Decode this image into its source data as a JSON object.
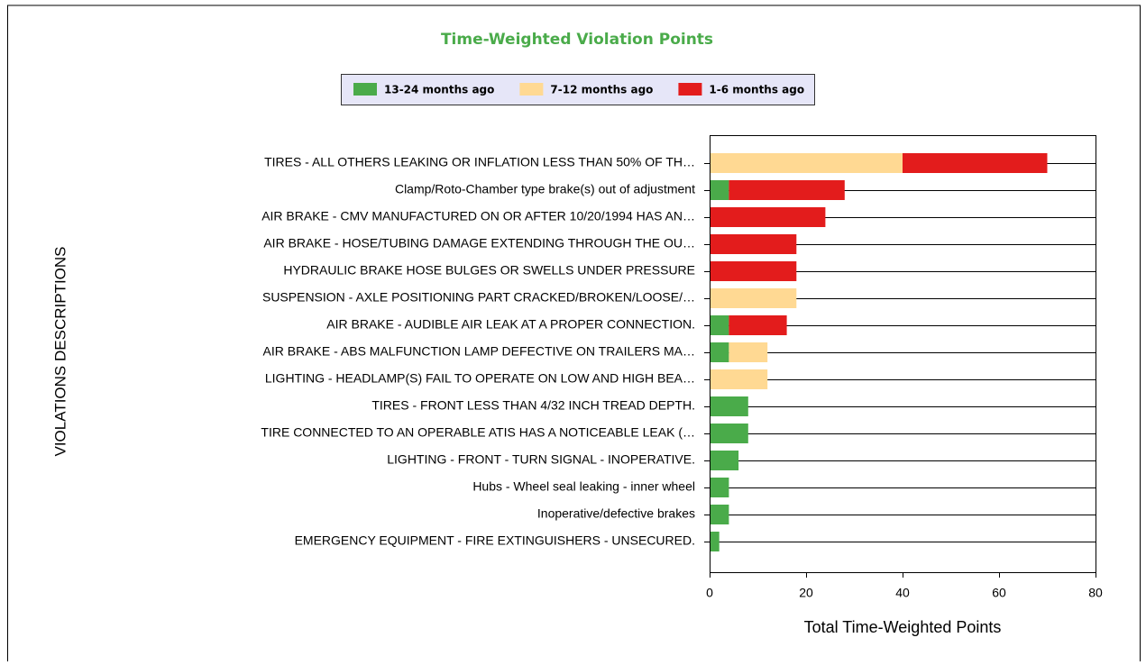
{
  "chart_data": {
    "type": "stacked_bar_horizontal",
    "title": "Time-Weighted Violation Points",
    "x_label": "Total Time-Weighted Points",
    "y_label": "VIOLATIONS DESCRIPTIONS",
    "categories": [
      "TIRES - ALL OTHERS LEAKING OR INFLATION LESS THAN 50% OF TH…",
      "Clamp/Roto-Chamber type brake(s) out of adjustment",
      "AIR BRAKE - CMV MANUFACTURED ON OR AFTER 10/20/1994 HAS AN…",
      "AIR BRAKE - HOSE/TUBING DAMAGE EXTENDING THROUGH THE OU…",
      "HYDRAULIC BRAKE HOSE BULGES OR SWELLS UNDER PRESSURE",
      "SUSPENSION - AXLE POSITIONING PART CRACKED/BROKEN/LOOSE/…",
      "AIR BRAKE - AUDIBLE AIR LEAK AT A PROPER CONNECTION.",
      "AIR BRAKE - ABS MALFUNCTION LAMP DEFECTIVE ON TRAILERS MA…",
      "LIGHTING - HEADLAMP(S) FAIL TO OPERATE ON LOW AND HIGH BEA…",
      "TIRES - FRONT LESS THAN 4/32 INCH TREAD DEPTH.",
      "TIRE CONNECTED TO AN OPERABLE ATIS HAS A NOTICEABLE LEAK (…",
      "LIGHTING - FRONT - TURN SIGNAL - INOPERATIVE.",
      "Hubs - Wheel seal leaking - inner wheel",
      "Inoperative/defective brakes",
      "EMERGENCY EQUIPMENT - FIRE EXTINGUISHERS - UNSECURED."
    ],
    "series": [
      {
        "name": "13-24 months ago",
        "color": "#4aab4a",
        "values": [
          0,
          4,
          0,
          0,
          0,
          0,
          4,
          4,
          0,
          8,
          8,
          6,
          4,
          4,
          2
        ]
      },
      {
        "name": "7-12 months ago",
        "color": "#ffd993",
        "values": [
          40,
          0,
          0,
          0,
          0,
          18,
          0,
          8,
          12,
          0,
          0,
          0,
          0,
          0,
          0
        ]
      },
      {
        "name": "1-6 months ago",
        "color": "#e31c1c",
        "values": [
          30,
          24,
          24,
          18,
          18,
          0,
          12,
          0,
          0,
          0,
          0,
          0,
          0,
          0,
          0
        ]
      }
    ],
    "xlim": [
      0,
      80
    ],
    "xticks": [
      0,
      20,
      40,
      60,
      80
    ]
  }
}
